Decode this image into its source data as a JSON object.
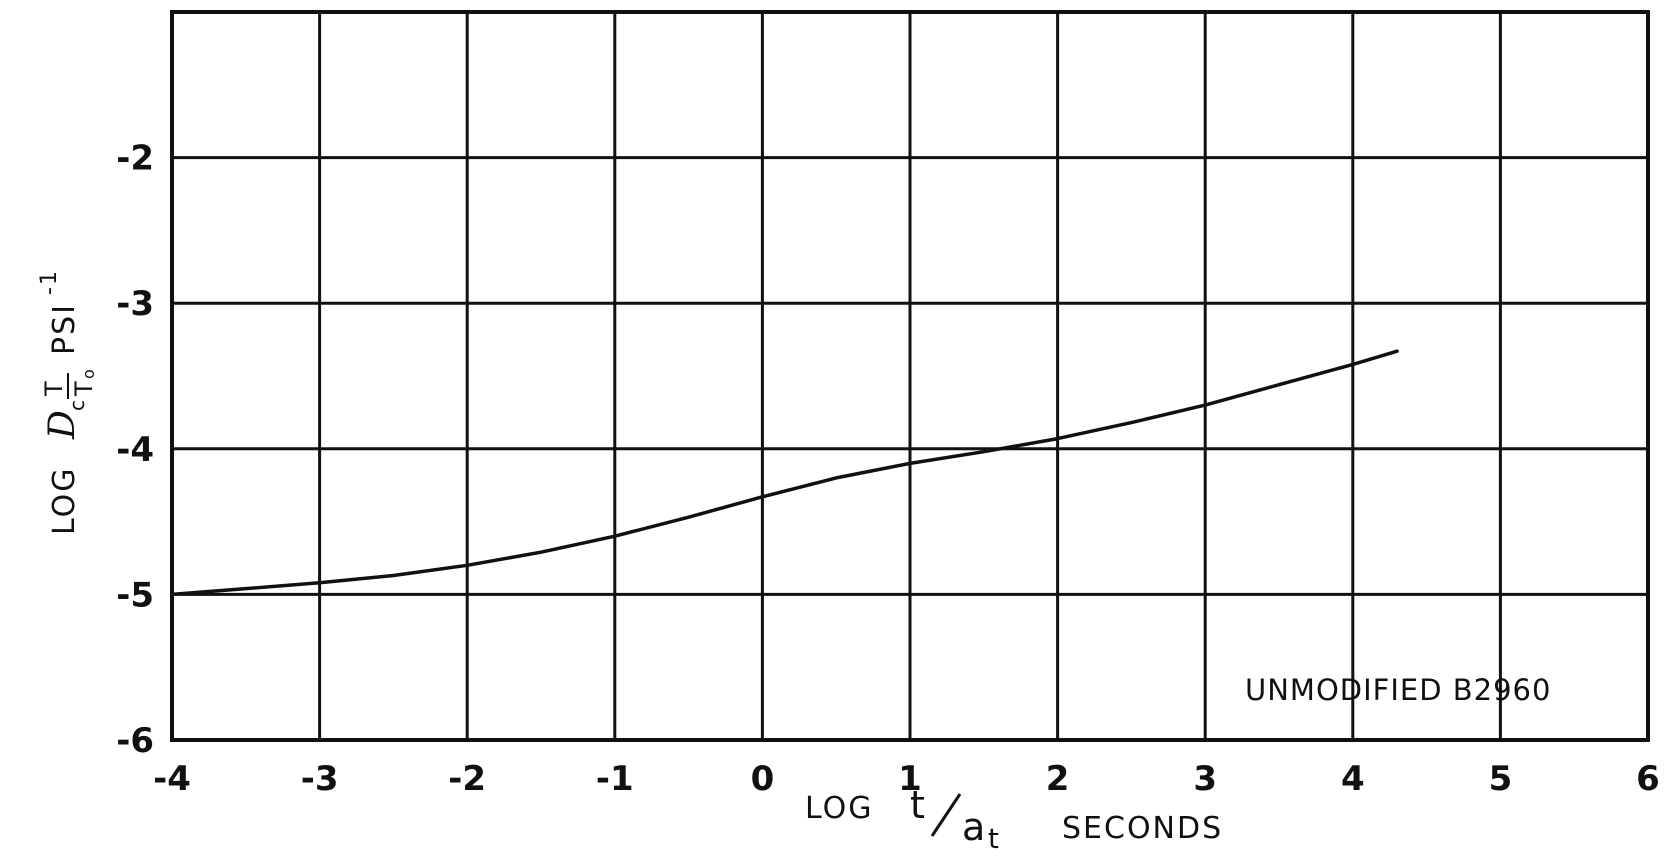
{
  "chart_data": {
    "type": "line",
    "title": "",
    "xlabel": {
      "prefix": "LOG",
      "numerator": "t",
      "denominator": "a",
      "denominator_sub": "t",
      "unit": "SECONDS"
    },
    "ylabel": {
      "prefix": "LOG",
      "symbol": "D",
      "symbol_sub": "c",
      "ratio_top": "T",
      "ratio_bottom": "T",
      "ratio_bottom_sub": "o",
      "unit": "PSI",
      "unit_exp": "-1"
    },
    "xlim": [
      -4,
      6
    ],
    "ylim": [
      -6,
      -1
    ],
    "x_ticks": [
      -4,
      -3,
      -2,
      -1,
      0,
      1,
      2,
      3,
      4,
      5,
      6
    ],
    "x_tick_labels": [
      "-4",
      "-3",
      "-2",
      "-1",
      "0",
      "1",
      "2",
      "3",
      "4",
      "5",
      "6"
    ],
    "y_ticks": [
      -2,
      -3,
      -4,
      -5,
      -6
    ],
    "y_tick_labels": [
      "-2",
      "-3",
      "-4",
      "-5",
      "-6"
    ],
    "grid": true,
    "annotation": "UNMODIFIED B2960",
    "series": [
      {
        "x": [
          -4,
          -3.5,
          -3,
          -2.5,
          -2,
          -1.5,
          -1,
          -0.5,
          0,
          0.5,
          1,
          1.5,
          2,
          2.5,
          3,
          3.5,
          4,
          4.3
        ],
        "y": [
          -5.0,
          -4.96,
          -4.92,
          -4.87,
          -4.8,
          -4.71,
          -4.6,
          -4.47,
          -4.33,
          -4.2,
          -4.1,
          -4.02,
          -3.93,
          -3.82,
          -3.7,
          -3.56,
          -3.42,
          -3.33
        ]
      }
    ]
  }
}
